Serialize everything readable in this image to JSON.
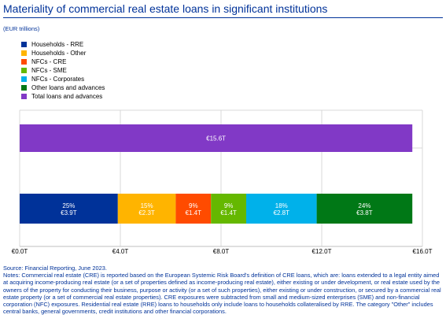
{
  "title": "Materiality of commercial real estate loans in significant institutions",
  "unit": "(EUR trillions)",
  "legend": [
    {
      "label": "Households - RRE",
      "color": "#003299"
    },
    {
      "label": "Households - Other",
      "color": "#ffb400"
    },
    {
      "label": "NFCs - CRE",
      "color": "#ff4b00"
    },
    {
      "label": "NFCs - SME",
      "color": "#65b800"
    },
    {
      "label": "NFCs - Corporates",
      "color": "#00b1ea"
    },
    {
      "label": "Other loans and advances",
      "color": "#007816"
    },
    {
      "label": "Total loans and advances",
      "color": "#8139c6"
    }
  ],
  "chart_data": {
    "type": "bar",
    "orientation": "horizontal",
    "stacked": true,
    "xlim": [
      0,
      16
    ],
    "xticks": [
      "€0.0T",
      "€4.0T",
      "€8.0T",
      "€12.0T",
      "€16.0T"
    ],
    "xtick_values": [
      0,
      4,
      8,
      12,
      16
    ],
    "grid": true,
    "total_bar": {
      "name": "Total loans and advances",
      "value": 15.6,
      "label": "€15.6T",
      "color": "#8139c6"
    },
    "breakdown_bar": [
      {
        "name": "Households - RRE",
        "value": 3.9,
        "pct": "25%",
        "label": "€3.9T",
        "color": "#003299"
      },
      {
        "name": "Households - Other",
        "value": 2.3,
        "pct": "15%",
        "label": "€2.3T",
        "color": "#ffb400"
      },
      {
        "name": "NFCs - CRE",
        "value": 1.4,
        "pct": "9%",
        "label": "€1.4T",
        "color": "#ff4b00"
      },
      {
        "name": "NFCs - SME",
        "value": 1.4,
        "pct": "9%",
        "label": "€1.4T",
        "color": "#65b800"
      },
      {
        "name": "NFCs - Corporates",
        "value": 2.8,
        "pct": "18%",
        "label": "€2.8T",
        "color": "#00b1ea"
      },
      {
        "name": "Other loans and advances",
        "value": 3.8,
        "pct": "24%",
        "label": "€3.8T",
        "color": "#007816"
      }
    ]
  },
  "source": "Source: Financial Reporting, June 2023.",
  "notes": "Notes: Commercial real estate (CRE) is reported based on the European Systemic Risk Board's definition of CRE loans, which are: loans extended to a legal entity aimed at acquiring income-producing real estate (or a set of properties defined as income-producing real estate), either existing or under development, or real estate used by the owners of the property for conducting their business, purpose or activity (or a set of such properties), either existing or under construction, or secured by a commercial real estate property (or a set of commercial real estate properties). CRE exposures were subtracted from small and medium-sized enterprises (SME) and non-financial corporation (NFC) exposures. Residential real estate (RRE) loans to households only include loans to households collateralised by RRE. The category \"Other\" includes central banks, general governments, credit institutions and other financial corporations."
}
